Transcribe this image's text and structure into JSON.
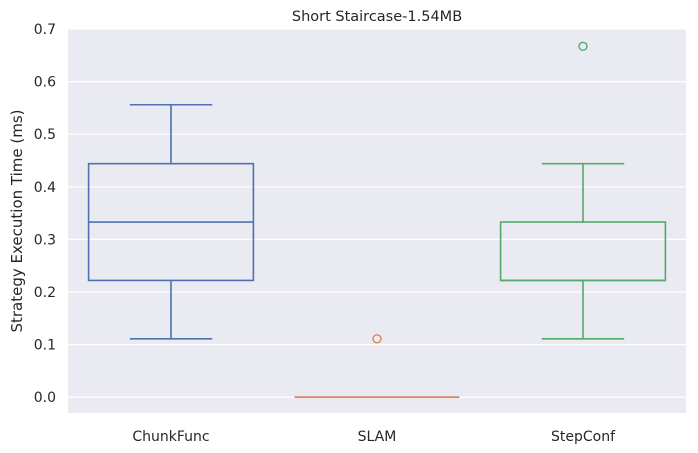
{
  "chart_data": {
    "type": "box",
    "title": "Short Staircase-1.54MB",
    "xlabel": "",
    "ylabel": "Strategy Execution Time (ms)",
    "ylim": [
      -0.03,
      0.7
    ],
    "yticks": [
      "0.0",
      "0.1",
      "0.2",
      "0.3",
      "0.4",
      "0.5",
      "0.6",
      "0.7"
    ],
    "grid": true,
    "categories": [
      "ChunkFunc",
      "SLAM",
      "StepConf"
    ],
    "colors": [
      "#4c72b0",
      "#dd8452",
      "#55a868"
    ],
    "boxes": [
      {
        "name": "ChunkFunc",
        "whisker_low": 0.111,
        "q1": 0.222,
        "median": 0.333,
        "q3": 0.444,
        "whisker_high": 0.556,
        "outliers": []
      },
      {
        "name": "SLAM",
        "whisker_low": 0.0,
        "q1": 0.0,
        "median": 0.0,
        "q3": 0.0,
        "whisker_high": 0.0,
        "outliers": [
          0.111
        ]
      },
      {
        "name": "StepConf",
        "whisker_low": 0.111,
        "q1": 0.222,
        "median": 0.222,
        "q3": 0.333,
        "whisker_high": 0.444,
        "outliers": [
          0.667
        ]
      }
    ]
  }
}
